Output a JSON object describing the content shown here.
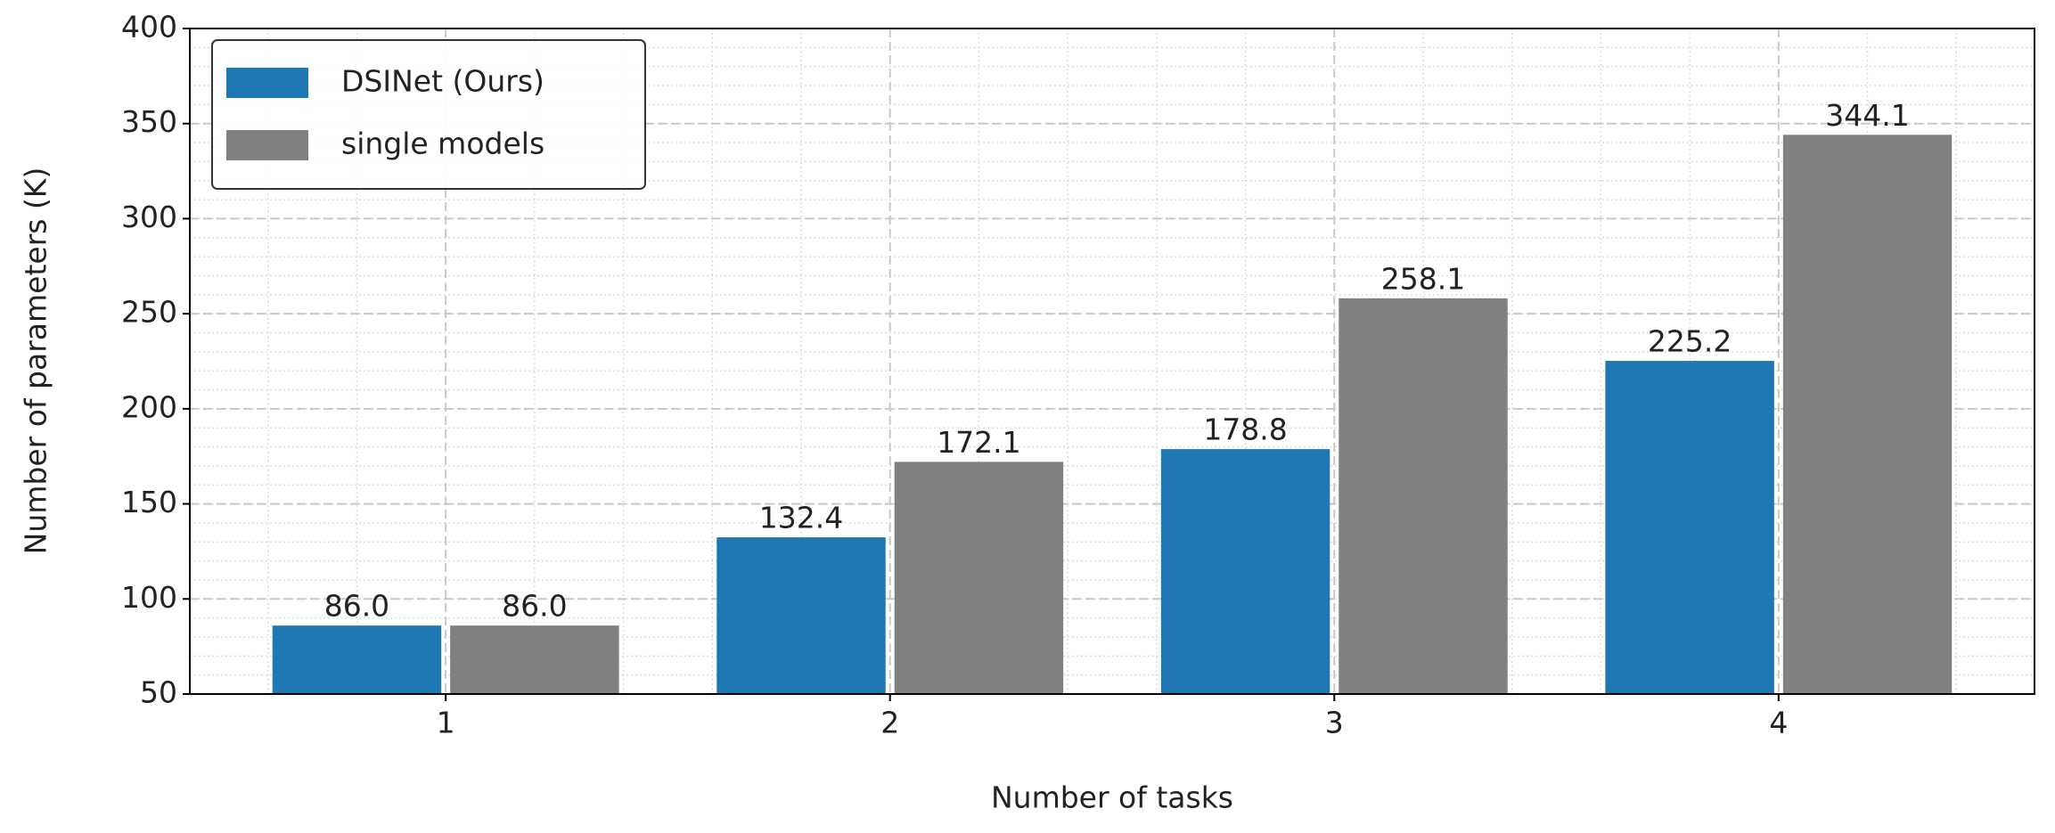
{
  "chart_data": {
    "type": "bar",
    "x_label": "Number of tasks",
    "y_label": "Number of parameters (K)",
    "categories": [
      "1",
      "2",
      "3",
      "4"
    ],
    "series": [
      {
        "name": "DSINet (Ours)",
        "color": "#1f77b4",
        "values": [
          86.0,
          132.4,
          178.8,
          225.2
        ],
        "value_labels": [
          "86.0",
          "132.4",
          "178.8",
          "225.2"
        ]
      },
      {
        "name": "single models",
        "color": "#808080",
        "values": [
          86.0,
          172.1,
          258.1,
          344.1
        ],
        "value_labels": [
          "86.0",
          "172.1",
          "258.1",
          "344.1"
        ]
      }
    ],
    "ylim": [
      50,
      400
    ],
    "yticks": [
      50,
      100,
      150,
      200,
      250,
      300,
      350,
      400
    ],
    "grid": true,
    "minor_grid": true,
    "minor_ystep": 10,
    "legend": "upper left"
  }
}
